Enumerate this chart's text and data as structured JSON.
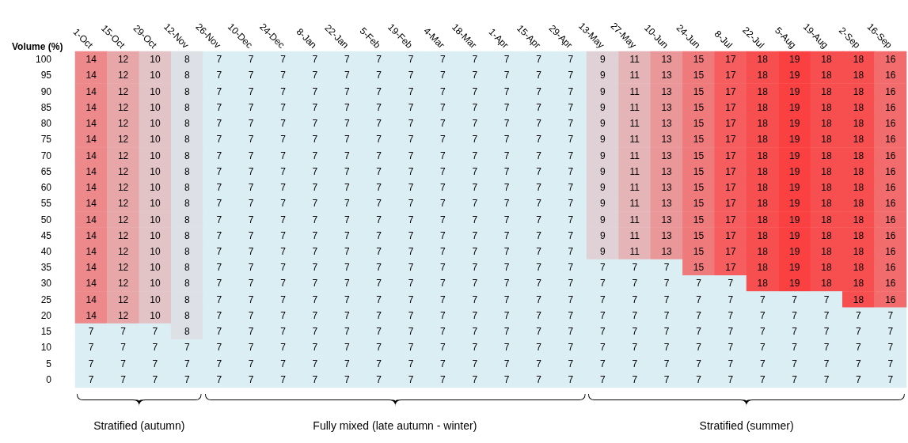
{
  "chart_data": {
    "type": "heatmap",
    "ylabel": "Volume (%)",
    "categories": [
      "1-Oct",
      "15-Oct",
      "29-Oct",
      "12-Nov",
      "26-Nov",
      "10-Dec",
      "24-Dec",
      "8-Jan",
      "22-Jan",
      "5-Feb",
      "19-Feb",
      "4-Mar",
      "18-Mar",
      "1-Apr",
      "15-Apr",
      "29-Apr",
      "13-May",
      "27-May",
      "10-Jun",
      "24-Jun",
      "8-Jul",
      "22-Jul",
      "5-Aug",
      "19-Aug",
      "2-Sep",
      "16-Sep"
    ],
    "y_categories": [
      "100",
      "95",
      "90",
      "85",
      "80",
      "75",
      "70",
      "65",
      "60",
      "55",
      "50",
      "45",
      "40",
      "35",
      "30",
      "25",
      "20",
      "15",
      "10",
      "5",
      "0"
    ],
    "cells": [
      [
        14,
        12,
        10,
        8,
        7,
        7,
        7,
        7,
        7,
        7,
        7,
        7,
        7,
        7,
        7,
        7,
        9,
        11,
        13,
        15,
        17,
        18,
        19,
        18,
        18,
        16
      ],
      [
        14,
        12,
        10,
        8,
        7,
        7,
        7,
        7,
        7,
        7,
        7,
        7,
        7,
        7,
        7,
        7,
        9,
        11,
        13,
        15,
        17,
        18,
        19,
        18,
        18,
        16
      ],
      [
        14,
        12,
        10,
        8,
        7,
        7,
        7,
        7,
        7,
        7,
        7,
        7,
        7,
        7,
        7,
        7,
        9,
        11,
        13,
        15,
        17,
        18,
        19,
        18,
        18,
        16
      ],
      [
        14,
        12,
        10,
        8,
        7,
        7,
        7,
        7,
        7,
        7,
        7,
        7,
        7,
        7,
        7,
        7,
        9,
        11,
        13,
        15,
        17,
        18,
        19,
        18,
        18,
        16
      ],
      [
        14,
        12,
        10,
        8,
        7,
        7,
        7,
        7,
        7,
        7,
        7,
        7,
        7,
        7,
        7,
        7,
        9,
        11,
        13,
        15,
        17,
        18,
        19,
        18,
        18,
        16
      ],
      [
        14,
        12,
        10,
        8,
        7,
        7,
        7,
        7,
        7,
        7,
        7,
        7,
        7,
        7,
        7,
        7,
        9,
        11,
        13,
        15,
        17,
        18,
        19,
        18,
        18,
        16
      ],
      [
        14,
        12,
        10,
        8,
        7,
        7,
        7,
        7,
        7,
        7,
        7,
        7,
        7,
        7,
        7,
        7,
        9,
        11,
        13,
        15,
        17,
        18,
        19,
        18,
        18,
        16
      ],
      [
        14,
        12,
        10,
        8,
        7,
        7,
        7,
        7,
        7,
        7,
        7,
        7,
        7,
        7,
        7,
        7,
        9,
        11,
        13,
        15,
        17,
        18,
        19,
        18,
        18,
        16
      ],
      [
        14,
        12,
        10,
        8,
        7,
        7,
        7,
        7,
        7,
        7,
        7,
        7,
        7,
        7,
        7,
        7,
        9,
        11,
        13,
        15,
        17,
        18,
        19,
        18,
        18,
        16
      ],
      [
        14,
        12,
        10,
        8,
        7,
        7,
        7,
        7,
        7,
        7,
        7,
        7,
        7,
        7,
        7,
        7,
        9,
        11,
        13,
        15,
        17,
        18,
        19,
        18,
        18,
        16
      ],
      [
        14,
        12,
        10,
        8,
        7,
        7,
        7,
        7,
        7,
        7,
        7,
        7,
        7,
        7,
        7,
        7,
        9,
        11,
        13,
        15,
        17,
        18,
        19,
        18,
        18,
        16
      ],
      [
        14,
        12,
        10,
        8,
        7,
        7,
        7,
        7,
        7,
        7,
        7,
        7,
        7,
        7,
        7,
        7,
        9,
        11,
        13,
        15,
        17,
        18,
        19,
        18,
        18,
        16
      ],
      [
        14,
        12,
        10,
        8,
        7,
        7,
        7,
        7,
        7,
        7,
        7,
        7,
        7,
        7,
        7,
        7,
        9,
        11,
        13,
        15,
        17,
        18,
        19,
        18,
        18,
        16
      ],
      [
        14,
        12,
        10,
        8,
        7,
        7,
        7,
        7,
        7,
        7,
        7,
        7,
        7,
        7,
        7,
        7,
        7,
        7,
        7,
        15,
        17,
        18,
        19,
        18,
        18,
        16
      ],
      [
        14,
        12,
        10,
        8,
        7,
        7,
        7,
        7,
        7,
        7,
        7,
        7,
        7,
        7,
        7,
        7,
        7,
        7,
        7,
        7,
        7,
        18,
        19,
        18,
        18,
        16
      ],
      [
        14,
        12,
        10,
        8,
        7,
        7,
        7,
        7,
        7,
        7,
        7,
        7,
        7,
        7,
        7,
        7,
        7,
        7,
        7,
        7,
        7,
        7,
        7,
        7,
        18,
        16
      ],
      [
        14,
        12,
        10,
        8,
        7,
        7,
        7,
        7,
        7,
        7,
        7,
        7,
        7,
        7,
        7,
        7,
        7,
        7,
        7,
        7,
        7,
        7,
        7,
        7,
        7,
        7
      ],
      [
        7,
        7,
        7,
        8,
        7,
        7,
        7,
        7,
        7,
        7,
        7,
        7,
        7,
        7,
        7,
        7,
        7,
        7,
        7,
        7,
        7,
        7,
        7,
        7,
        7,
        7
      ],
      [
        7,
        7,
        7,
        7,
        7,
        7,
        7,
        7,
        7,
        7,
        7,
        7,
        7,
        7,
        7,
        7,
        7,
        7,
        7,
        7,
        7,
        7,
        7,
        7,
        7,
        7
      ],
      [
        7,
        7,
        7,
        7,
        7,
        7,
        7,
        7,
        7,
        7,
        7,
        7,
        7,
        7,
        7,
        7,
        7,
        7,
        7,
        7,
        7,
        7,
        7,
        7,
        7,
        7
      ],
      [
        7,
        7,
        7,
        7,
        7,
        7,
        7,
        7,
        7,
        7,
        7,
        7,
        7,
        7,
        7,
        7,
        7,
        7,
        7,
        7,
        7,
        7,
        7,
        7,
        7,
        7
      ]
    ],
    "colors": [
      "#daeef3",
      "#fa4040"
    ],
    "data_labels": true,
    "annotations": [
      "Stratified (autumn)",
      "Fully mixed (late autumn - winter)",
      "Stratified (summer)"
    ]
  }
}
